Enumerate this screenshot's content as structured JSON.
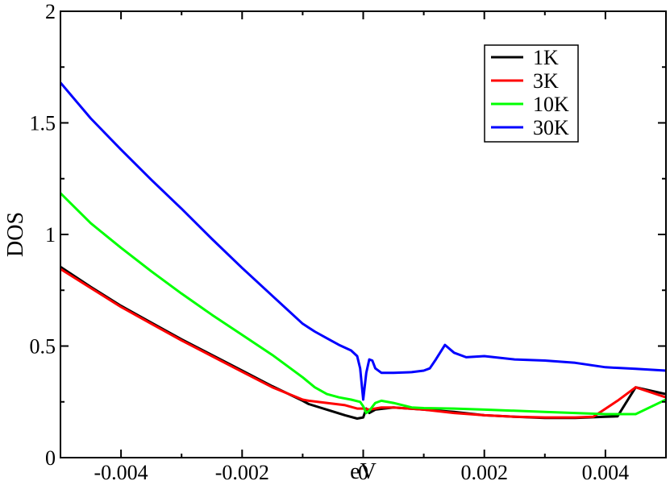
{
  "chart_data": {
    "type": "line",
    "title": "",
    "xlabel": "eV",
    "ylabel": "DOS",
    "xlim": [
      -0.005,
      0.005
    ],
    "ylim": [
      0,
      2
    ],
    "grid": false,
    "legend_placement": "top-right",
    "xticks": [
      -0.004,
      -0.002,
      0,
      0.002,
      0.004
    ],
    "xtick_labels": [
      "-0.004",
      "-0.002",
      "0",
      "0.002",
      "0.004"
    ],
    "yticks": [
      0,
      0.5,
      1,
      1.5,
      2
    ],
    "ytick_labels": [
      "0",
      "0.5",
      "1",
      "1.5",
      "2"
    ],
    "series": [
      {
        "name": "1K",
        "color": "#000000",
        "points": [
          [
            -0.005,
            0.855
          ],
          [
            -0.0045,
            0.765
          ],
          [
            -0.004,
            0.68
          ],
          [
            -0.0035,
            0.605
          ],
          [
            -0.003,
            0.53
          ],
          [
            -0.0025,
            0.46
          ],
          [
            -0.002,
            0.39
          ],
          [
            -0.0015,
            0.32
          ],
          [
            -0.001,
            0.255
          ],
          [
            -0.0009,
            0.24
          ],
          [
            -0.0006,
            0.215
          ],
          [
            -0.0003,
            0.19
          ],
          [
            -0.0001,
            0.175
          ],
          [
            0.0,
            0.18
          ],
          [
            5e-05,
            0.22
          ],
          [
            0.0001,
            0.2
          ],
          [
            0.0002,
            0.215
          ],
          [
            0.0005,
            0.225
          ],
          [
            0.001,
            0.215
          ],
          [
            0.0015,
            0.205
          ],
          [
            0.002,
            0.19
          ],
          [
            0.0025,
            0.183
          ],
          [
            0.003,
            0.178
          ],
          [
            0.0035,
            0.178
          ],
          [
            0.004,
            0.183
          ],
          [
            0.0042,
            0.185
          ],
          [
            0.0045,
            0.315
          ],
          [
            0.005,
            0.285
          ]
        ]
      },
      {
        "name": "3K",
        "color": "#ff0000",
        "points": [
          [
            -0.005,
            0.845
          ],
          [
            -0.0045,
            0.76
          ],
          [
            -0.004,
            0.675
          ],
          [
            -0.0035,
            0.6
          ],
          [
            -0.003,
            0.525
          ],
          [
            -0.0025,
            0.455
          ],
          [
            -0.002,
            0.385
          ],
          [
            -0.0015,
            0.315
          ],
          [
            -0.001,
            0.26
          ],
          [
            -0.0009,
            0.255
          ],
          [
            -0.0006,
            0.245
          ],
          [
            -0.0003,
            0.235
          ],
          [
            -0.0001,
            0.22
          ],
          [
            0.0,
            0.22
          ],
          [
            0.0001,
            0.215
          ],
          [
            0.0003,
            0.225
          ],
          [
            0.0005,
            0.225
          ],
          [
            0.001,
            0.215
          ],
          [
            0.0015,
            0.2
          ],
          [
            0.002,
            0.19
          ],
          [
            0.0025,
            0.183
          ],
          [
            0.003,
            0.18
          ],
          [
            0.0035,
            0.18
          ],
          [
            0.0038,
            0.183
          ],
          [
            0.0042,
            0.255
          ],
          [
            0.0045,
            0.315
          ],
          [
            0.005,
            0.27
          ]
        ]
      },
      {
        "name": "10K",
        "color": "#00ff00",
        "points": [
          [
            -0.005,
            1.185
          ],
          [
            -0.0045,
            1.05
          ],
          [
            -0.004,
            0.94
          ],
          [
            -0.0035,
            0.835
          ],
          [
            -0.003,
            0.735
          ],
          [
            -0.0025,
            0.64
          ],
          [
            -0.002,
            0.55
          ],
          [
            -0.0015,
            0.46
          ],
          [
            -0.001,
            0.36
          ],
          [
            -0.0008,
            0.315
          ],
          [
            -0.0006,
            0.285
          ],
          [
            -0.0004,
            0.27
          ],
          [
            -0.0002,
            0.26
          ],
          [
            -5e-05,
            0.25
          ],
          [
            0.0,
            0.23
          ],
          [
            5e-05,
            0.2
          ],
          [
            0.0001,
            0.21
          ],
          [
            0.0002,
            0.245
          ],
          [
            0.0003,
            0.255
          ],
          [
            0.0005,
            0.245
          ],
          [
            0.0008,
            0.225
          ],
          [
            0.001,
            0.222
          ],
          [
            0.0015,
            0.22
          ],
          [
            0.002,
            0.215
          ],
          [
            0.0025,
            0.21
          ],
          [
            0.003,
            0.205
          ],
          [
            0.0035,
            0.2
          ],
          [
            0.004,
            0.195
          ],
          [
            0.0045,
            0.195
          ],
          [
            0.005,
            0.26
          ]
        ]
      },
      {
        "name": "30K",
        "color": "#0000ff",
        "points": [
          [
            -0.005,
            1.68
          ],
          [
            -0.0045,
            1.52
          ],
          [
            -0.004,
            1.38
          ],
          [
            -0.0035,
            1.245
          ],
          [
            -0.003,
            1.115
          ],
          [
            -0.0025,
            0.98
          ],
          [
            -0.002,
            0.85
          ],
          [
            -0.0015,
            0.725
          ],
          [
            -0.001,
            0.6
          ],
          [
            -0.0008,
            0.565
          ],
          [
            -0.0006,
            0.535
          ],
          [
            -0.0004,
            0.505
          ],
          [
            -0.0002,
            0.48
          ],
          [
            -0.0001,
            0.455
          ],
          [
            -5e-05,
            0.4
          ],
          [
            0.0,
            0.26
          ],
          [
            5e-05,
            0.38
          ],
          [
            0.0001,
            0.44
          ],
          [
            0.00015,
            0.435
          ],
          [
            0.0002,
            0.4
          ],
          [
            0.0003,
            0.38
          ],
          [
            0.0005,
            0.38
          ],
          [
            0.0008,
            0.383
          ],
          [
            0.001,
            0.39
          ],
          [
            0.0011,
            0.4
          ],
          [
            0.0012,
            0.44
          ],
          [
            0.00135,
            0.505
          ],
          [
            0.0015,
            0.47
          ],
          [
            0.0017,
            0.45
          ],
          [
            0.002,
            0.455
          ],
          [
            0.0025,
            0.44
          ],
          [
            0.003,
            0.435
          ],
          [
            0.0035,
            0.425
          ],
          [
            0.004,
            0.405
          ],
          [
            0.0045,
            0.398
          ],
          [
            0.005,
            0.39
          ]
        ]
      }
    ]
  }
}
